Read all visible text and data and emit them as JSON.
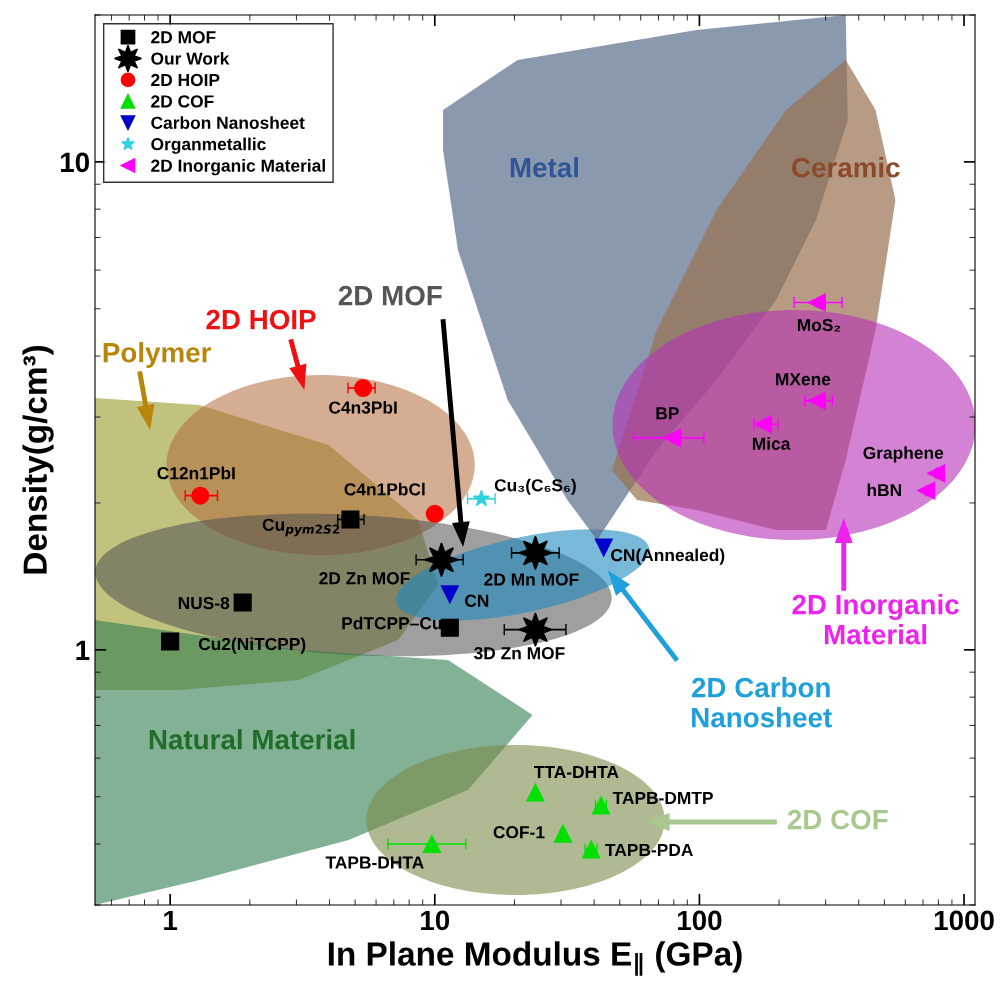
{
  "chart_data": {
    "type": "scatter",
    "xlabel": "In Plane Modulus E$_{∥}$ (GPa)",
    "ylabel": "Density(g/cm³)",
    "log": "xy",
    "xlim": [
      0.52,
      1100
    ],
    "ylim": [
      0.3,
      20
    ],
    "xticks": [
      1,
      10,
      100,
      1000
    ],
    "yticks": [
      1,
      10
    ],
    "grid": false,
    "legend": "top left",
    "series": [
      {
        "name": "2D MOF",
        "color": "#000000",
        "marker": "square",
        "x": [
          4.8,
          1.88,
          1.0,
          11.4
        ],
        "values": [
          1.85,
          1.25,
          1.04,
          1.11
        ],
        "xerrors": [
          [
            4.3,
            5.4
          ],
          null,
          null,
          null
        ]
      },
      {
        "name": "Our Work",
        "color": "#000000",
        "marker": "star",
        "x": [
          10.6,
          24,
          24
        ],
        "values": [
          1.53,
          1.58,
          1.1
        ],
        "xerrors": [
          [
            8.5,
            12.8
          ],
          [
            19.5,
            29.5
          ],
          [
            18.3,
            31.3
          ]
        ]
      },
      {
        "name": "2D HOIP",
        "color": "#ff0000",
        "marker": "circle",
        "x": [
          5.36,
          1.3,
          10.0
        ],
        "values": [
          3.44,
          2.07,
          1.9
        ],
        "xerrors": [
          [
            4.7,
            5.95
          ],
          [
            1.14,
            1.51
          ],
          null
        ]
      },
      {
        "name": "2D COF",
        "color": "#00e000",
        "marker": "triangle",
        "x": [
          24,
          42.5,
          30.5,
          39,
          9.75
        ],
        "values": [
          0.51,
          0.48,
          0.42,
          0.39,
          0.4
        ],
        "xerrors": [
          null,
          [
            40.5,
            44.5
          ],
          null,
          [
            37,
            41
          ],
          [
            6.65,
            13.1
          ]
        ]
      },
      {
        "name": "Carbon Nanosheet",
        "color": "#0000cc",
        "marker": "triangle_down",
        "x": [
          11.4,
          43.5
        ],
        "values": [
          1.3,
          1.62
        ]
      },
      {
        "name": "Organmetallic",
        "color": "#30d0e0",
        "marker": "star",
        "x": [
          15
        ],
        "values": [
          2.04
        ],
        "xerrors": [
          [
            13.3,
            16.9
          ]
        ]
      },
      {
        "name": "2D Inorganic Material",
        "color": "#ff00ff",
        "marker": "triangle_left",
        "x": [
          278,
          278,
          174,
          79,
          785,
          720
        ],
        "values": [
          5.15,
          3.24,
          2.9,
          2.72,
          2.3,
          2.12
        ],
        "xerrors": [
          [
            228,
            346
          ],
          [
            250,
            318
          ],
          [
            161,
            198
          ],
          [
            56.5,
            104
          ],
          null,
          null
        ]
      }
    ],
    "annotations": [
      "Metal",
      "Ceramic",
      "Natural Material",
      "2D COF",
      "2D HOIP",
      "2D MOF",
      "Polymer",
      "2D Inorganic\nMaterial",
      "2D Carbon\nNanosheet",
      {
        "text": "C4n3PbI",
        "x": 5.36,
        "y": 3.44
      },
      {
        "text": "C12n1PbI",
        "x": 1.3,
        "y": 2.07
      },
      {
        "text": "C4n1PbCl",
        "x": 10.0,
        "y": 1.9
      },
      {
        "text": "Cu$_{pym2S2}$",
        "x": 4.8,
        "y": 1.85
      },
      {
        "text": "Cu₃(C₆S₆)",
        "x": 15,
        "y": 2.04
      },
      {
        "text": "2D Zn MOF",
        "x": 10.6,
        "y": 1.53
      },
      {
        "text": "2D Mn MOF",
        "x": 24,
        "y": 1.58
      },
      {
        "text": "CN",
        "x": 11.4,
        "y": 1.3
      },
      {
        "text": "CN(Annealed)",
        "x": 43.5,
        "y": 1.62
      },
      {
        "text": "NUS-8",
        "x": 1.88,
        "y": 1.25
      },
      {
        "text": "Cu2(NiTCPP)",
        "x": 1.0,
        "y": 1.04
      },
      {
        "text": "PdTCPP–Cu",
        "x": 11.4,
        "y": 1.11
      },
      {
        "text": "3D Zn MOF",
        "x": 24,
        "y": 1.1
      },
      {
        "text": "MoS₂",
        "x": 278,
        "y": 5.15
      },
      {
        "text": "MXene",
        "x": 278,
        "y": 3.24
      },
      {
        "text": "Mica",
        "x": 174,
        "y": 2.9
      },
      {
        "text": "BP",
        "x": 79,
        "y": 2.72
      },
      {
        "text": "Graphene",
        "x": 785,
        "y": 2.3
      },
      {
        "text": "hBN",
        "x": 720,
        "y": 2.12
      },
      {
        "text": "TTA-DHTA",
        "x": 24,
        "y": 0.51
      },
      {
        "text": "TAPB-DMTP",
        "x": 42.5,
        "y": 0.48
      },
      {
        "text": "COF-1",
        "x": 30.5,
        "y": 0.42
      },
      {
        "text": "TAPB-PDA",
        "x": 39,
        "y": 0.39
      },
      {
        "text": "TAPB-DHTA",
        "x": 9.75,
        "y": 0.4
      }
    ]
  }
}
